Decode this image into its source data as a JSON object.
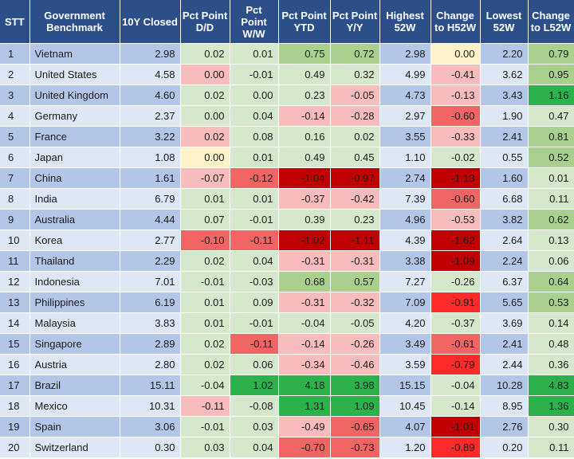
{
  "headers": [
    "STT",
    "Government Benchmark",
    "10Y Closed",
    "Pct Point D/D",
    "Pct Point W/W",
    "Pct Point YTD",
    "Pct Point Y/Y",
    "Highest 52W",
    "Change to H52W",
    "Lowest 52W",
    "Change to L52W"
  ],
  "rows": [
    {
      "stt": "1",
      "country": "Vietnam",
      "closed": "2.98",
      "dd": "0.02",
      "ww": "0.01",
      "ytd": "0.75",
      "yy": "0.72",
      "h52": "2.98",
      "ch52": "0.00",
      "l52": "2.20",
      "cl52": "0.79"
    },
    {
      "stt": "2",
      "country": "United States",
      "closed": "4.58",
      "dd": "0.00",
      "ww": "-0.01",
      "ytd": "0.49",
      "yy": "0.32",
      "h52": "4.99",
      "ch52": "-0.41",
      "l52": "3.62",
      "cl52": "0.95"
    },
    {
      "stt": "3",
      "country": "United Kingdom",
      "closed": "4.60",
      "dd": "0.02",
      "ww": "0.00",
      "ytd": "0.23",
      "yy": "-0.05",
      "h52": "4.73",
      "ch52": "-0.13",
      "l52": "3.43",
      "cl52": "1.16"
    },
    {
      "stt": "4",
      "country": "Germany",
      "closed": "2.37",
      "dd": "0.00",
      "ww": "0.04",
      "ytd": "-0.14",
      "yy": "-0.28",
      "h52": "2.97",
      "ch52": "-0.60",
      "l52": "1.90",
      "cl52": "0.47"
    },
    {
      "stt": "5",
      "country": "France",
      "closed": "3.22",
      "dd": "0.02",
      "ww": "0.08",
      "ytd": "0.16",
      "yy": "0.02",
      "h52": "3.55",
      "ch52": "-0.33",
      "l52": "2.41",
      "cl52": "0.81"
    },
    {
      "stt": "6",
      "country": "Japan",
      "closed": "1.08",
      "dd": "0.00",
      "ww": "0.01",
      "ytd": "0.49",
      "yy": "0.45",
      "h52": "1.10",
      "ch52": "-0.02",
      "l52": "0.55",
      "cl52": "0.52"
    },
    {
      "stt": "7",
      "country": "China",
      "closed": "1.61",
      "dd": "-0.07",
      "ww": "-0.12",
      "ytd": "-1.04",
      "yy": "-0.97",
      "h52": "2.74",
      "ch52": "-1.13",
      "l52": "1.60",
      "cl52": "0.01"
    },
    {
      "stt": "8",
      "country": "India",
      "closed": "6.79",
      "dd": "0.01",
      "ww": "0.01",
      "ytd": "-0.37",
      "yy": "-0.42",
      "h52": "7.39",
      "ch52": "-0.60",
      "l52": "6.68",
      "cl52": "0.11"
    },
    {
      "stt": "9",
      "country": "Australia",
      "closed": "4.44",
      "dd": "0.07",
      "ww": "-0.01",
      "ytd": "0.39",
      "yy": "0.23",
      "h52": "4.96",
      "ch52": "-0.53",
      "l52": "3.82",
      "cl52": "0.62"
    },
    {
      "stt": "10",
      "country": "Korea",
      "closed": "2.77",
      "dd": "-0.10",
      "ww": "-0.11",
      "ytd": "-1.02",
      "yy": "-1.11",
      "h52": "4.39",
      "ch52": "-1.62",
      "l52": "2.64",
      "cl52": "0.13"
    },
    {
      "stt": "11",
      "country": "Thailand",
      "closed": "2.29",
      "dd": "0.02",
      "ww": "0.04",
      "ytd": "-0.31",
      "yy": "-0.31",
      "h52": "3.38",
      "ch52": "-1.09",
      "l52": "2.24",
      "cl52": "0.06"
    },
    {
      "stt": "12",
      "country": "Indonesia",
      "closed": "7.01",
      "dd": "-0.01",
      "ww": "-0.03",
      "ytd": "0.68",
      "yy": "0.57",
      "h52": "7.27",
      "ch52": "-0.26",
      "l52": "6.37",
      "cl52": "0.64"
    },
    {
      "stt": "13",
      "country": "Philippines",
      "closed": "6.19",
      "dd": "0.01",
      "ww": "0.09",
      "ytd": "-0.31",
      "yy": "-0.32",
      "h52": "7.09",
      "ch52": "-0.91",
      "l52": "5.65",
      "cl52": "0.53"
    },
    {
      "stt": "14",
      "country": "Malaysia",
      "closed": "3.83",
      "dd": "0.01",
      "ww": "-0.01",
      "ytd": "-0.04",
      "yy": "-0.05",
      "h52": "4.20",
      "ch52": "-0.37",
      "l52": "3.69",
      "cl52": "0.14"
    },
    {
      "stt": "15",
      "country": "Singapore",
      "closed": "2.89",
      "dd": "0.02",
      "ww": "-0.11",
      "ytd": "-0.14",
      "yy": "-0.26",
      "h52": "3.49",
      "ch52": "-0.61",
      "l52": "2.41",
      "cl52": "0.48"
    },
    {
      "stt": "16",
      "country": "Austria",
      "closed": "2.80",
      "dd": "0.02",
      "ww": "0.06",
      "ytd": "-0.34",
      "yy": "-0.46",
      "h52": "3.59",
      "ch52": "-0.79",
      "l52": "2.44",
      "cl52": "0.36"
    },
    {
      "stt": "17",
      "country": "Brazil",
      "closed": "15.11",
      "dd": "-0.04",
      "ww": "1.02",
      "ytd": "4.18",
      "yy": "3.98",
      "h52": "15.15",
      "ch52": "-0.04",
      "l52": "10.28",
      "cl52": "4.83"
    },
    {
      "stt": "18",
      "country": "Mexico",
      "closed": "10.31",
      "dd": "-0.11",
      "ww": "-0.08",
      "ytd": "1.31",
      "yy": "1.09",
      "h52": "10.45",
      "ch52": "-0.14",
      "l52": "8.95",
      "cl52": "1.36"
    },
    {
      "stt": "19",
      "country": "Spain",
      "closed": "3.06",
      "dd": "-0.01",
      "ww": "0.03",
      "ytd": "-0.49",
      "yy": "-0.65",
      "h52": "4.07",
      "ch52": "-1.01",
      "l52": "2.76",
      "cl52": "0.30"
    },
    {
      "stt": "20",
      "country": "Switzerland",
      "closed": "0.30",
      "dd": "0.03",
      "ww": "0.04",
      "ytd": "-0.70",
      "yy": "-0.73",
      "h52": "1.20",
      "ch52": "-0.89",
      "l52": "0.20",
      "cl52": "0.11"
    }
  ],
  "colors": {
    "header_bg": "#2c4f8a",
    "row_odd": "#b4c6e7",
    "row_even": "#dde7f6",
    "light_green": "#d5e8cc",
    "medium_green": "#a9d08e",
    "dark_green": "#2bb24c",
    "light_red": "#f8bcbc",
    "medium_red": "#f26565",
    "dark_red": "#c00000",
    "bright_red": "#ff2a2a",
    "neutral_yellow": "#fdf2c8"
  }
}
